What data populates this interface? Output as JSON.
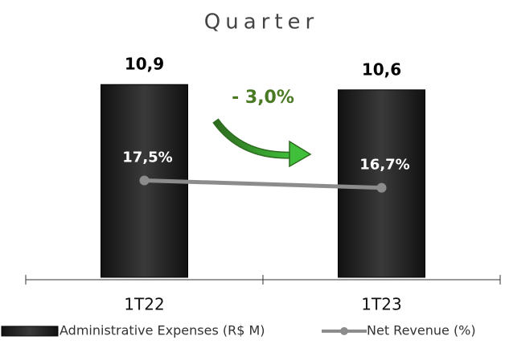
{
  "chart_data": {
    "type": "bar",
    "title": "Quarter",
    "categories": [
      "1T22",
      "1T23"
    ],
    "series": [
      {
        "name": "Administrative Expenses (R$ M)",
        "type": "bar",
        "color": "#2b2b2b",
        "values": [
          10.9,
          10.6
        ],
        "value_labels": [
          "10,9",
          "10,6"
        ]
      },
      {
        "name": "Net Revenue (%)",
        "type": "line",
        "axis": "y2",
        "color": "#8c8c8c",
        "values": [
          17.5,
          16.7
        ],
        "value_labels": [
          "17,5%",
          "16,7%"
        ]
      }
    ],
    "annotation": "- 3,0%",
    "annotation_color": "#4a7a23",
    "ylim": [
      0,
      12
    ],
    "y2lim": [
      7,
      30
    ]
  }
}
